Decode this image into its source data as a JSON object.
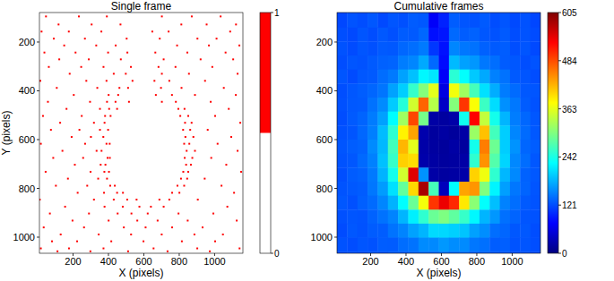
{
  "chart_data": [
    {
      "type": "scatter",
      "title": "Single frame",
      "x_label": "X (pixels)",
      "y_label": "Y (pixels)",
      "xlim": [
        10,
        1160
      ],
      "ylim": [
        1066,
        79
      ],
      "xticks": [
        200,
        400,
        600,
        800,
        1000
      ],
      "yticks": [
        200,
        400,
        600,
        800,
        1000
      ],
      "color": "#ff0000",
      "color_range": [
        0,
        1
      ],
      "color_ticks": [
        0,
        1
      ],
      "x": [
        47,
        233,
        391,
        702,
        871,
        1034,
        118,
        305,
        468,
        812,
        955,
        1121,
        22,
        176,
        360,
        648,
        740,
        1088,
        91,
        267,
        503,
        690,
        903,
        1011,
        150,
        331,
        441,
        788,
        968,
        1140,
        38,
        214,
        398,
        507,
        665,
        846,
        1062,
        122,
        289,
        470,
        712,
        921,
        1105,
        63,
        246,
        372,
        527,
        683,
        779,
        987,
        181,
        430,
        498,
        702,
        855,
        1130,
        15,
        275,
        389,
        536,
        660,
        744,
        946,
        108,
        337,
        462,
        511,
        697,
        813,
        1052,
        204,
        401,
        455,
        668,
        759,
        889,
        1120,
        58,
        296,
        392,
        440,
        516,
        702,
        781,
        978,
        163,
        352,
        404,
        449,
        795,
        830,
        1080,
        30,
        249,
        381,
        412,
        806,
        851,
        1003,
        127,
        318,
        378,
        833,
        870,
        1145,
        75,
        236,
        352,
        398,
        822,
        862,
        961,
        192,
        301,
        371,
        835,
        880,
        1094,
        18,
        268,
        389,
        407,
        828,
        857,
        1017,
        140,
        333,
        361,
        842,
        889,
        1130,
        88,
        257,
        395,
        408,
        831,
        874,
        981,
        210,
        356,
        383,
        839,
        866,
        1066,
        45,
        299,
        377,
        403,
        823,
        851,
        1150,
        171,
        342,
        392,
        810,
        845,
        944,
        103,
        280,
        410,
        436,
        790,
        828,
        1039,
        226,
        375,
        449,
        482,
        760,
        801,
        1110,
        12,
        318,
        430,
        506,
        559,
        688,
        744,
        905,
        155,
        378,
        481,
        575,
        640,
        712,
        1072,
        69,
        290,
        452,
        530,
        622,
        796,
        993,
        197,
        401,
        563,
        678,
        848,
        1125,
        34,
        262,
        487,
        610,
        760,
        932,
        130,
        345,
        528,
        701,
        886,
        1047,
        81,
        223,
        416,
        598,
        815,
        1003,
        18,
        177,
        372,
        655,
        902,
        1141,
        112,
        298,
        511,
        734,
        973
      ],
      "y": [
        95,
        95,
        95,
        95,
        95,
        95,
        128,
        128,
        128,
        128,
        128,
        128,
        157,
        157,
        157,
        157,
        157,
        157,
        186,
        186,
        186,
        186,
        186,
        186,
        214,
        214,
        214,
        214,
        214,
        214,
        243,
        243,
        243,
        243,
        243,
        243,
        243,
        271,
        271,
        271,
        271,
        271,
        271,
        302,
        302,
        302,
        302,
        302,
        302,
        302,
        330,
        330,
        330,
        330,
        330,
        330,
        359,
        359,
        359,
        359,
        359,
        359,
        359,
        388,
        388,
        388,
        388,
        388,
        388,
        388,
        417,
        417,
        417,
        417,
        417,
        417,
        417,
        445,
        445,
        445,
        445,
        445,
        445,
        445,
        445,
        474,
        474,
        474,
        474,
        474,
        474,
        474,
        503,
        503,
        503,
        503,
        503,
        503,
        503,
        531,
        531,
        531,
        531,
        531,
        531,
        560,
        560,
        560,
        560,
        560,
        560,
        560,
        589,
        589,
        589,
        589,
        589,
        589,
        617,
        617,
        617,
        617,
        617,
        617,
        617,
        646,
        646,
        646,
        646,
        646,
        646,
        675,
        675,
        675,
        675,
        675,
        675,
        675,
        703,
        703,
        703,
        703,
        703,
        703,
        732,
        732,
        732,
        732,
        732,
        732,
        732,
        760,
        760,
        760,
        760,
        760,
        760,
        789,
        789,
        789,
        789,
        789,
        789,
        789,
        818,
        818,
        818,
        818,
        818,
        818,
        818,
        846,
        846,
        846,
        846,
        846,
        846,
        846,
        846,
        875,
        875,
        875,
        875,
        875,
        875,
        875,
        903,
        903,
        903,
        903,
        903,
        903,
        903,
        932,
        932,
        932,
        932,
        932,
        932,
        960,
        960,
        960,
        960,
        960,
        960,
        989,
        989,
        989,
        989,
        989,
        989,
        1017,
        1017,
        1017,
        1017,
        1017,
        1017,
        1046,
        1046,
        1046,
        1046,
        1046,
        1046,
        1058,
        1058,
        1058,
        1058,
        1058
      ]
    },
    {
      "type": "heatmap",
      "title": "Cumulative frames",
      "x_label": "X (pixels)",
      "xlim": [
        10,
        1160
      ],
      "ylim": [
        1066,
        79
      ],
      "xticks": [
        200,
        400,
        600,
        800,
        1000
      ],
      "yticks": [
        200,
        400,
        600,
        800,
        1000
      ],
      "color_range": [
        0,
        605
      ],
      "color_ticks": [
        0,
        121,
        242,
        363,
        484,
        605
      ],
      "x": [
        39,
        96,
        154,
        211,
        269,
        326,
        384,
        441,
        499,
        556,
        614,
        671,
        729,
        786,
        844,
        901,
        959,
        1016,
        1074,
        1131
      ],
      "y": [
        112,
        169,
        226,
        284,
        341,
        399,
        456,
        514,
        571,
        629,
        686,
        744,
        801,
        859,
        916,
        973,
        1031,
        1088
      ],
      "cells": [
        [
          118,
          125,
          121,
          127,
          119,
          126,
          123,
          130,
          128,
          72,
          95,
          131,
          126,
          124,
          129,
          121,
          126,
          119,
          124,
          117
        ],
        [
          122,
          119,
          126,
          121,
          128,
          123,
          130,
          129,
          137,
          84,
          88,
          138,
          131,
          134,
          127,
          124,
          129,
          121,
          125,
          120
        ],
        [
          124,
          120,
          126,
          123,
          129,
          128,
          137,
          141,
          148,
          108,
          86,
          155,
          146,
          143,
          133,
          129,
          131,
          122,
          126,
          119
        ],
        [
          121,
          126,
          124,
          129,
          133,
          135,
          150,
          155,
          176,
          138,
          82,
          186,
          171,
          165,
          147,
          141,
          130,
          127,
          122,
          125
        ],
        [
          126,
          120,
          127,
          129,
          140,
          148,
          172,
          190,
          223,
          212,
          72,
          252,
          228,
          195,
          176,
          152,
          143,
          129,
          126,
          121
        ],
        [
          122,
          127,
          131,
          136,
          145,
          172,
          198,
          258,
          305,
          362,
          58,
          371,
          322,
          268,
          209,
          178,
          149,
          139,
          128,
          126
        ],
        [
          123,
          128,
          129,
          143,
          158,
          196,
          249,
          351,
          470,
          335,
          42,
          305,
          498,
          376,
          262,
          207,
          161,
          147,
          130,
          124
        ],
        [
          121,
          129,
          135,
          149,
          171,
          226,
          321,
          488,
          296,
          22,
          19,
          24,
          236,
          528,
          342,
          238,
          183,
          150,
          137,
          127
        ],
        [
          123,
          126,
          137,
          151,
          187,
          254,
          385,
          432,
          27,
          18,
          21,
          17,
          22,
          318,
          415,
          266,
          198,
          155,
          139,
          128
        ],
        [
          126,
          131,
          134,
          158,
          185,
          266,
          421,
          362,
          24,
          19,
          17,
          22,
          18,
          238,
          455,
          291,
          197,
          163,
          136,
          131
        ],
        [
          124,
          127,
          138,
          152,
          190,
          259,
          406,
          398,
          26,
          21,
          18,
          20,
          23,
          255,
          442,
          276,
          202,
          156,
          140,
          127
        ],
        [
          122,
          130,
          133,
          148,
          182,
          238,
          351,
          548,
          162,
          23,
          19,
          21,
          24,
          405,
          369,
          255,
          184,
          157,
          134,
          128
        ],
        [
          125,
          128,
          130,
          146,
          168,
          209,
          285,
          402,
          581,
          268,
          36,
          226,
          432,
          441,
          303,
          221,
          170,
          146,
          135,
          126
        ],
        [
          127,
          123,
          132,
          139,
          155,
          181,
          226,
          289,
          372,
          498,
          540,
          506,
          391,
          309,
          228,
          189,
          153,
          141,
          129,
          125
        ],
        [
          123,
          126,
          125,
          134,
          143,
          154,
          183,
          218,
          255,
          289,
          301,
          283,
          259,
          223,
          183,
          165,
          142,
          135,
          126,
          124
        ],
        [
          120,
          127,
          124,
          130,
          131,
          144,
          154,
          172,
          183,
          205,
          204,
          199,
          192,
          171,
          160,
          141,
          136,
          127,
          128,
          121
        ],
        [
          124,
          121,
          126,
          124,
          131,
          130,
          140,
          144,
          158,
          157,
          166,
          159,
          158,
          146,
          142,
          131,
          132,
          125,
          126,
          122
        ],
        [
          121,
          124,
          122,
          127,
          124,
          130,
          129,
          135,
          139,
          137,
          143,
          138,
          140,
          132,
          133,
          127,
          128,
          123,
          125,
          120
        ]
      ]
    }
  ]
}
